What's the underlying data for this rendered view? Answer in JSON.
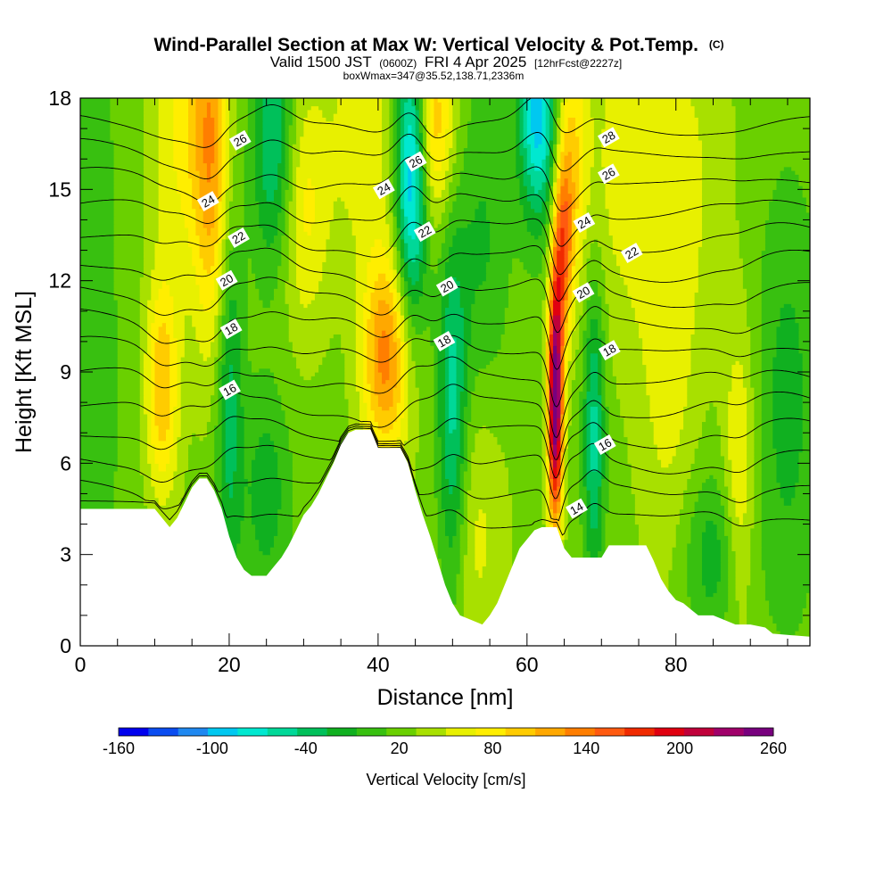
{
  "chart_data": {
    "type": "heatmap",
    "title": {
      "main": "Wind-Parallel Section at Max W: Vertical Velocity & Pot.Temp.",
      "copyright": "(C)",
      "valid_prefix": "Valid 1500 JST",
      "valid_zulu": "(0600Z)",
      "valid_date": "FRI 4 Apr 2025",
      "forecast": "[12hrFcst@2227z]",
      "box_info": "boxWmax=347@35.52,138.71,2336m"
    },
    "xlabel": "Distance [nm]",
    "ylabel": "Height [Kft MSL]",
    "xlim": [
      0,
      98
    ],
    "ylim": [
      0,
      18
    ],
    "x_ticks": [
      0,
      20,
      40,
      60,
      80
    ],
    "x_tick_labels": [
      "0",
      "20",
      "40",
      "60",
      "80"
    ],
    "x_minor_step": 5,
    "y_ticks": [
      0,
      3,
      6,
      9,
      12,
      15,
      18
    ],
    "y_tick_labels": [
      "0",
      "3",
      "6",
      "9",
      "12",
      "15",
      "18"
    ],
    "y_minor_step": 1,
    "colorbar": {
      "label": "Vertical Velocity [cm/s]",
      "min": -160,
      "max": 260,
      "step": 20,
      "tick_labels": [
        "-160",
        "-100",
        "-40",
        "20",
        "80",
        "140",
        "200",
        "260"
      ],
      "colors": [
        "#0000ee",
        "#0a4cf0",
        "#1f88f0",
        "#00c8f0",
        "#00e8d0",
        "#00d898",
        "#00c05a",
        "#10b020",
        "#38c010",
        "#6ad000",
        "#a8e000",
        "#e8f000",
        "#ffee00",
        "#ffcc00",
        "#ffa800",
        "#ff7e00",
        "#ff5a10",
        "#f02a00",
        "#e00010",
        "#c0003a",
        "#a0006a",
        "#78007e"
      ]
    },
    "terrain_top_kft": [
      {
        "x": 0,
        "h": 4.5
      },
      {
        "x": 5,
        "h": 4.5
      },
      {
        "x": 10,
        "h": 4.5
      },
      {
        "x": 11,
        "h": 4.2
      },
      {
        "x": 12,
        "h": 3.9
      },
      {
        "x": 13,
        "h": 4.2
      },
      {
        "x": 14,
        "h": 4.7
      },
      {
        "x": 15,
        "h": 5.2
      },
      {
        "x": 16,
        "h": 5.5
      },
      {
        "x": 17,
        "h": 5.5
      },
      {
        "x": 18,
        "h": 5.1
      },
      {
        "x": 19,
        "h": 4.5
      },
      {
        "x": 20,
        "h": 3.6
      },
      {
        "x": 21,
        "h": 2.9
      },
      {
        "x": 22,
        "h": 2.5
      },
      {
        "x": 23,
        "h": 2.3
      },
      {
        "x": 25,
        "h": 2.3
      },
      {
        "x": 26,
        "h": 2.6
      },
      {
        "x": 27,
        "h": 2.9
      },
      {
        "x": 28,
        "h": 3.3
      },
      {
        "x": 29,
        "h": 3.8
      },
      {
        "x": 30,
        "h": 4.3
      },
      {
        "x": 31,
        "h": 4.6
      },
      {
        "x": 32,
        "h": 5.0
      },
      {
        "x": 33,
        "h": 5.5
      },
      {
        "x": 34,
        "h": 6.0
      },
      {
        "x": 35,
        "h": 6.6
      },
      {
        "x": 36,
        "h": 7.0
      },
      {
        "x": 37,
        "h": 7.1
      },
      {
        "x": 39,
        "h": 7.1
      },
      {
        "x": 40,
        "h": 6.5
      },
      {
        "x": 43,
        "h": 6.5
      },
      {
        "x": 44,
        "h": 6.0
      },
      {
        "x": 45,
        "h": 5.1
      },
      {
        "x": 46,
        "h": 4.3
      },
      {
        "x": 47,
        "h": 3.6
      },
      {
        "x": 48,
        "h": 2.8
      },
      {
        "x": 49,
        "h": 2.0
      },
      {
        "x": 50,
        "h": 1.4
      },
      {
        "x": 51,
        "h": 1.0
      },
      {
        "x": 52,
        "h": 0.9
      },
      {
        "x": 54,
        "h": 0.7
      },
      {
        "x": 55,
        "h": 1.0
      },
      {
        "x": 56,
        "h": 1.4
      },
      {
        "x": 57,
        "h": 2.0
      },
      {
        "x": 58,
        "h": 2.6
      },
      {
        "x": 59,
        "h": 3.2
      },
      {
        "x": 60,
        "h": 3.5
      },
      {
        "x": 61,
        "h": 3.8
      },
      {
        "x": 62,
        "h": 3.9
      },
      {
        "x": 64,
        "h": 3.9
      },
      {
        "x": 65,
        "h": 3.2
      },
      {
        "x": 66,
        "h": 2.9
      },
      {
        "x": 70,
        "h": 2.9
      },
      {
        "x": 71,
        "h": 3.3
      },
      {
        "x": 76,
        "h": 3.3
      },
      {
        "x": 77,
        "h": 2.8
      },
      {
        "x": 78,
        "h": 2.2
      },
      {
        "x": 79,
        "h": 1.8
      },
      {
        "x": 80,
        "h": 1.5
      },
      {
        "x": 81,
        "h": 1.4
      },
      {
        "x": 82,
        "h": 1.2
      },
      {
        "x": 83,
        "h": 1.0
      },
      {
        "x": 85,
        "h": 1.0
      },
      {
        "x": 86,
        "h": 0.9
      },
      {
        "x": 88,
        "h": 0.7
      },
      {
        "x": 90,
        "h": 0.7
      },
      {
        "x": 92,
        "h": 0.6
      },
      {
        "x": 93,
        "h": 0.4
      },
      {
        "x": 98,
        "h": 0.3
      }
    ],
    "vertical_velocity_features": [
      {
        "x": 0,
        "h": 9,
        "sx": 4,
        "sy": 14,
        "w": -25
      },
      {
        "x": 11,
        "h": 8.5,
        "sx": 1.6,
        "sy": 2.6,
        "w": 85
      },
      {
        "x": 14,
        "h": 17.5,
        "sx": 3.0,
        "sy": 4.0,
        "w": 55
      },
      {
        "x": 17.8,
        "h": 16,
        "sx": 1.8,
        "sy": 4.5,
        "w": 90
      },
      {
        "x": 20,
        "h": 8.5,
        "sx": 1.3,
        "sy": 5,
        "w": -65
      },
      {
        "x": 25,
        "h": 5.0,
        "sx": 2.2,
        "sy": 2.4,
        "w": -45
      },
      {
        "x": 26,
        "h": 16.5,
        "sx": 2.0,
        "sy": 3.0,
        "w": -80
      },
      {
        "x": 30,
        "h": 14.5,
        "sx": 2.5,
        "sy": 3.0,
        "w": 55
      },
      {
        "x": 38,
        "h": 17,
        "sx": 3.0,
        "sy": 3.0,
        "w": 45
      },
      {
        "x": 41,
        "h": 9.5,
        "sx": 2.3,
        "sy": 2.5,
        "w": 115
      },
      {
        "x": 44.5,
        "h": 15.5,
        "sx": 1.5,
        "sy": 3.2,
        "w": -140
      },
      {
        "x": 47.5,
        "h": 17.2,
        "sx": 2.0,
        "sy": 2.3,
        "w": 85
      },
      {
        "x": 50,
        "h": 7.5,
        "sx": 1.4,
        "sy": 4.2,
        "w": -85
      },
      {
        "x": 53,
        "h": 4,
        "sx": 3.0,
        "sy": 3.5,
        "w": 35
      },
      {
        "x": 54,
        "h": 13,
        "sx": 2.5,
        "sy": 4.0,
        "w": -35
      },
      {
        "x": 61.5,
        "h": 17.5,
        "sx": 1.8,
        "sy": 2.5,
        "w": -125
      },
      {
        "x": 63.8,
        "h": 8.0,
        "sx": 0.7,
        "sy": 2.8,
        "w": 255
      },
      {
        "x": 64.8,
        "h": 13,
        "sx": 0.9,
        "sy": 2.2,
        "w": 110
      },
      {
        "x": 66,
        "h": 16,
        "sx": 1.5,
        "sy": 3.0,
        "w": 70
      },
      {
        "x": 69,
        "h": 7.0,
        "sx": 1.0,
        "sy": 3.5,
        "w": -80
      },
      {
        "x": 73,
        "h": 16,
        "sx": 3.5,
        "sy": 4.0,
        "w": 38
      },
      {
        "x": 79,
        "h": 9.0,
        "sx": 3.0,
        "sy": 5.0,
        "w": 35
      },
      {
        "x": 82,
        "h": 16.0,
        "sx": 4.0,
        "sy": 4.0,
        "w": 25
      },
      {
        "x": 85,
        "h": 3.0,
        "sx": 3.0,
        "sy": 2.0,
        "w": -45
      },
      {
        "x": 88.5,
        "h": 5.5,
        "sx": 1.5,
        "sy": 3.5,
        "w": 55
      },
      {
        "x": 95,
        "h": 8.0,
        "sx": 3.0,
        "sy": 5.0,
        "w": -40
      }
    ],
    "background_velocity": 12,
    "pot_temp_contours": {
      "levels": [
        14,
        15,
        16,
        17,
        18,
        19,
        20,
        21,
        22,
        23,
        24,
        25,
        26,
        27,
        28
      ],
      "labels": [
        {
          "text": "14",
          "x": 66.7,
          "y": 4.5
        },
        {
          "text": "16",
          "x": 20.1,
          "y": 8.4
        },
        {
          "text": "16",
          "x": 70.5,
          "y": 6.6
        },
        {
          "text": "18",
          "x": 20.3,
          "y": 10.4
        },
        {
          "text": "18",
          "x": 48.9,
          "y": 10.0
        },
        {
          "text": "18",
          "x": 71.1,
          "y": 9.7
        },
        {
          "text": "20",
          "x": 19.7,
          "y": 12.0
        },
        {
          "text": "20",
          "x": 49.3,
          "y": 11.8
        },
        {
          "text": "20",
          "x": 67.6,
          "y": 11.6
        },
        {
          "text": "22",
          "x": 21.3,
          "y": 13.4
        },
        {
          "text": "22",
          "x": 46.3,
          "y": 13.6
        },
        {
          "text": "22",
          "x": 74.1,
          "y": 12.9
        },
        {
          "text": "24",
          "x": 17.2,
          "y": 14.6
        },
        {
          "text": "24",
          "x": 40.8,
          "y": 15.0
        },
        {
          "text": "24",
          "x": 67.7,
          "y": 13.9
        },
        {
          "text": "26",
          "x": 21.5,
          "y": 16.6
        },
        {
          "text": "26",
          "x": 45.1,
          "y": 15.9
        },
        {
          "text": "26",
          "x": 71.0,
          "y": 15.5
        },
        {
          "text": "28",
          "x": 71.0,
          "y": 16.7
        }
      ]
    }
  }
}
